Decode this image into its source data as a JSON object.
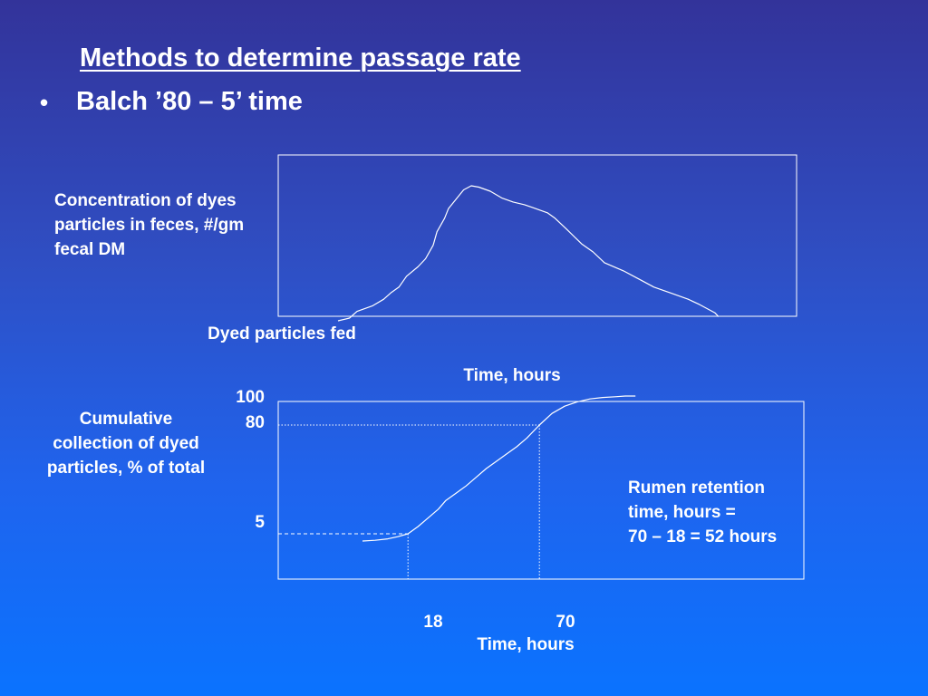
{
  "slide": {
    "title": "Methods to determine passage rate",
    "bullet_symbol": "•",
    "bullet": "Balch ’80 – 5’ time"
  },
  "chart_data": [
    {
      "type": "line",
      "title": "",
      "ylabel": "Concentration of dyes particles in feces, #/gm fecal DM",
      "xlabel": "Time, hours",
      "annotation": "Dyed particles fed",
      "y_axis_numbers": "none",
      "x_axis_numbers": "none",
      "grid": false,
      "series": [
        {
          "values_relative": [
            [
              0.0,
              0.0
            ],
            [
              0.03,
              0.02
            ],
            [
              0.05,
              0.07
            ],
            [
              0.09,
              0.11
            ],
            [
              0.12,
              0.16
            ],
            [
              0.14,
              0.21
            ],
            [
              0.16,
              0.25
            ],
            [
              0.18,
              0.33
            ],
            [
              0.21,
              0.4
            ],
            [
              0.23,
              0.46
            ],
            [
              0.25,
              0.56
            ],
            [
              0.26,
              0.66
            ],
            [
              0.28,
              0.76
            ],
            [
              0.29,
              0.83
            ],
            [
              0.31,
              0.9
            ],
            [
              0.33,
              0.97
            ],
            [
              0.35,
              1.0
            ],
            [
              0.37,
              0.99
            ],
            [
              0.4,
              0.96
            ],
            [
              0.43,
              0.91
            ],
            [
              0.46,
              0.88
            ],
            [
              0.49,
              0.86
            ],
            [
              0.51,
              0.84
            ],
            [
              0.55,
              0.8
            ],
            [
              0.57,
              0.76
            ],
            [
              0.6,
              0.68
            ],
            [
              0.64,
              0.57
            ],
            [
              0.67,
              0.51
            ],
            [
              0.7,
              0.43
            ],
            [
              0.75,
              0.37
            ],
            [
              0.79,
              0.31
            ],
            [
              0.83,
              0.25
            ],
            [
              0.88,
              0.2
            ],
            [
              0.92,
              0.16
            ],
            [
              0.95,
              0.12
            ],
            [
              0.99,
              0.06
            ],
            [
              1.0,
              0.03
            ]
          ]
        }
      ]
    },
    {
      "type": "line",
      "title": "",
      "ylabel": "Cumulative collection of dyed particles, % of total",
      "xlabel": "Time, hours",
      "y_ticks": [
        "100",
        "80",
        "5"
      ],
      "x_ticks": [
        "18",
        "70"
      ],
      "guides": [
        {
          "x": 18,
          "y": 5,
          "style": "dashed"
        },
        {
          "x": 70,
          "y": 80,
          "style": "dotted"
        }
      ],
      "grid": false,
      "series": [
        {
          "x": [
            0,
            5,
            10,
            14,
            18,
            22,
            26,
            30,
            33,
            37,
            41,
            45,
            49,
            53,
            57,
            61,
            65,
            70,
            75,
            80,
            85,
            90,
            95,
            100,
            104,
            108
          ],
          "y": [
            0,
            0.5,
            1.5,
            3,
            5,
            10,
            16,
            22,
            28,
            33,
            38,
            44,
            50,
            55,
            60,
            65,
            71,
            80,
            88,
            93,
            96,
            98,
            99,
            99.5,
            100,
            100
          ]
        }
      ],
      "annotation_lines": [
        "Rumen retention",
        "time, hours =",
        "70 – 18 = 52 hours"
      ]
    }
  ]
}
